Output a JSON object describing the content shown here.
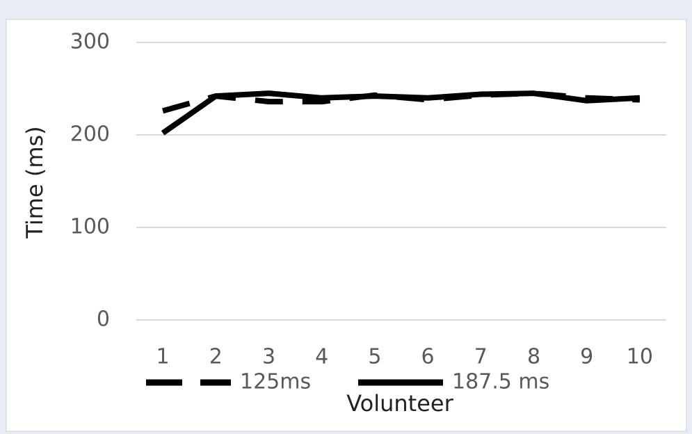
{
  "chart_data": {
    "type": "line",
    "x_label": "Volunteer",
    "y_label": "Time (ms)",
    "categories": [
      "1",
      "2",
      "3",
      "4",
      "5",
      "6",
      "7",
      "8",
      "9",
      "10"
    ],
    "series": [
      {
        "name": "125ms",
        "color": "#000000",
        "line_style": "dashed",
        "values": [
          226,
          242,
          236,
          236,
          243,
          238,
          243,
          245,
          240,
          238
        ]
      },
      {
        "name": "187.5 ms",
        "color": "#000000",
        "line_style": "solid",
        "values": [
          202,
          242,
          245,
          240,
          242,
          240,
          244,
          245,
          237,
          240
        ]
      }
    ],
    "ylim": [
      0,
      300
    ],
    "yticks": [
      0,
      100,
      200,
      300
    ],
    "grid": true,
    "legend": "bottom"
  }
}
